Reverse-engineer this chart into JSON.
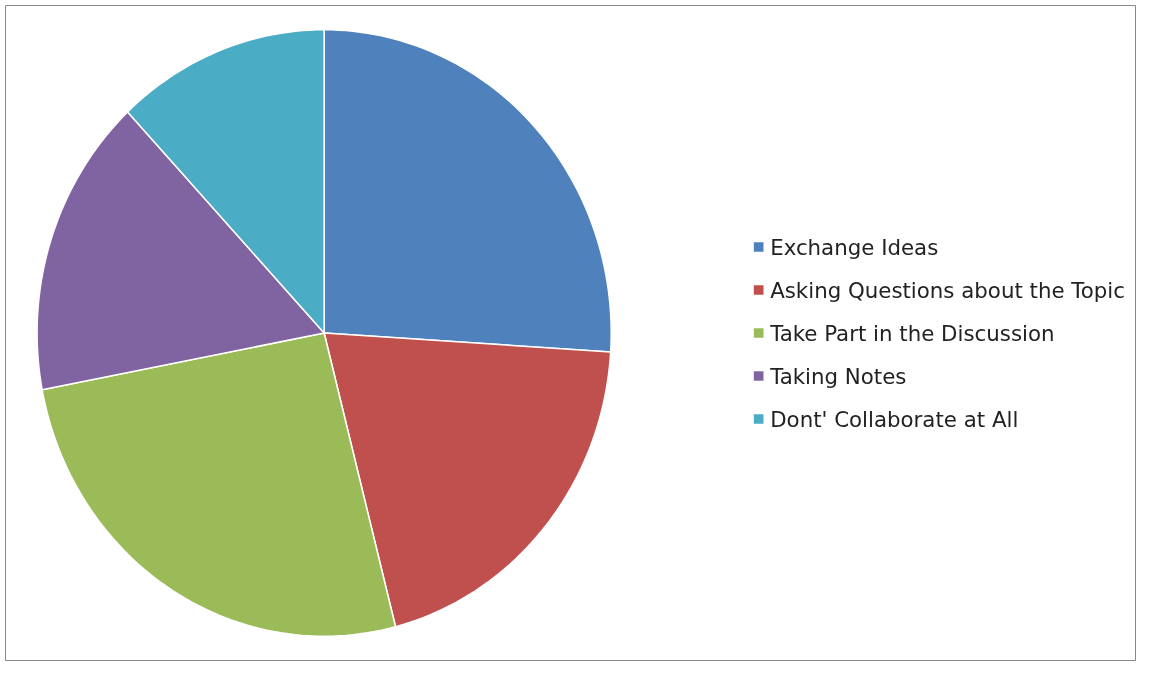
{
  "chart_data": {
    "type": "pie",
    "categories": [
      "Exchange Ideas",
      "Asking Questions about the Topic",
      "Take Part in the Discussion",
      "Taking Notes",
      "Dont' Collaborate at All"
    ],
    "values": [
      26,
      20,
      26,
      16,
      12
    ],
    "colors": [
      "#4f81bd",
      "#c0504d",
      "#9bbb59",
      "#8064a2",
      "#4bacc6"
    ],
    "legend": "right"
  }
}
